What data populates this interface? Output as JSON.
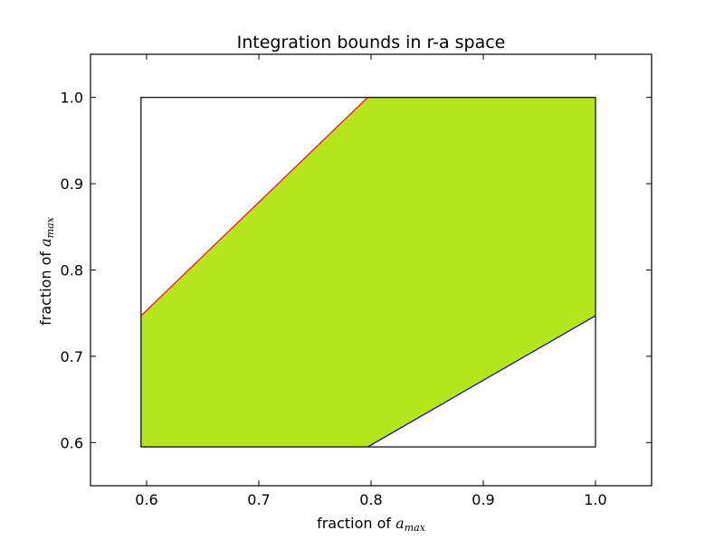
{
  "chart_data": {
    "type": "area",
    "title": "Integration bounds in r-a space",
    "xlabel": {
      "prefix": "fraction of ",
      "var": "a",
      "sub": "max"
    },
    "ylabel": {
      "prefix": "fraction of ",
      "var": "a",
      "sub": "max"
    },
    "xlim": [
      0.55,
      1.05
    ],
    "ylim": [
      0.55,
      1.05
    ],
    "xticks": [
      0.6,
      0.7,
      0.8,
      0.9,
      1.0
    ],
    "yticks": [
      0.6,
      0.7,
      0.8,
      0.9,
      1.0
    ],
    "xtick_labels": [
      "0.6",
      "0.7",
      "0.8",
      "0.9",
      "1.0"
    ],
    "ytick_labels": [
      "0.6",
      "0.7",
      "0.8",
      "0.9",
      "1.0"
    ],
    "grid": false,
    "legend": "none",
    "bounding_box": {
      "x": [
        0.595,
        1.0
      ],
      "y": [
        0.595,
        1.0
      ],
      "color": "#000000"
    },
    "region": {
      "color": "#b5e61d",
      "points": [
        {
          "x": 0.595,
          "y": 0.595
        },
        {
          "x": 0.797,
          "y": 0.595
        },
        {
          "x": 1.0,
          "y": 0.747
        },
        {
          "x": 1.0,
          "y": 1.0
        },
        {
          "x": 0.797,
          "y": 1.0
        },
        {
          "x": 0.595,
          "y": 0.747
        }
      ]
    },
    "series": [
      {
        "color": "#ff0000",
        "x": [
          0.595,
          0.797
        ],
        "y": [
          0.747,
          1.0
        ]
      },
      {
        "color": "#0000ff",
        "x": [
          0.797,
          1.0
        ],
        "y": [
          0.595,
          0.747
        ]
      }
    ]
  }
}
